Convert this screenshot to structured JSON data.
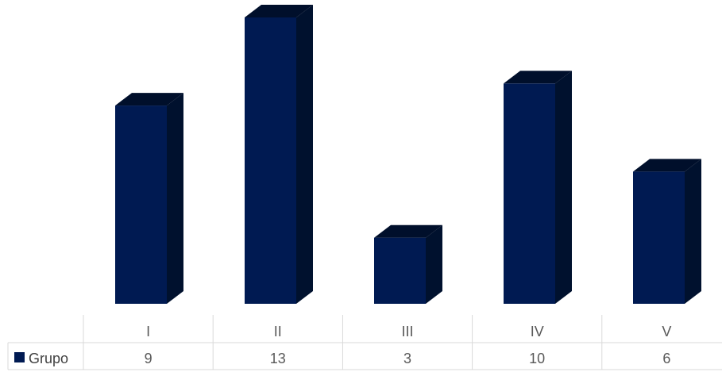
{
  "chart_data": {
    "type": "bar",
    "style": "3d-column-with-data-table",
    "categories": [
      "I",
      "II",
      "III",
      "IV",
      "V"
    ],
    "series": [
      {
        "name": "Grupo",
        "values": [
          9,
          13,
          3,
          10,
          6
        ]
      }
    ],
    "title": "",
    "xlabel": "",
    "ylabel": "",
    "ylim": [
      0,
      13
    ],
    "grid": false,
    "legend": "data-table-left",
    "colors": {
      "bar_front": "#001a52",
      "bar_side": "#00112e",
      "bar_top": "#000f2b",
      "table_border": "#d9d9d9",
      "table_text": "#595959"
    }
  }
}
